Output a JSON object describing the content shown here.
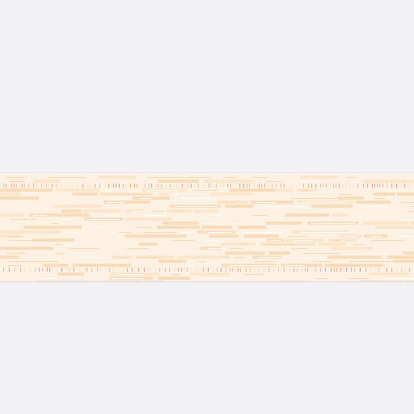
{
  "colors": {
    "background": "#f2f2f5",
    "strip_background": "#fdf1e3",
    "text_dark": "#f7d5ae",
    "text_light": "#ffffff",
    "cell_accent": "#f8ddbd",
    "tick_dark": "#d9a88a",
    "tick_accent": "#e8a073",
    "tick_red": "#d89090",
    "border": "#e4e3ee"
  }
}
